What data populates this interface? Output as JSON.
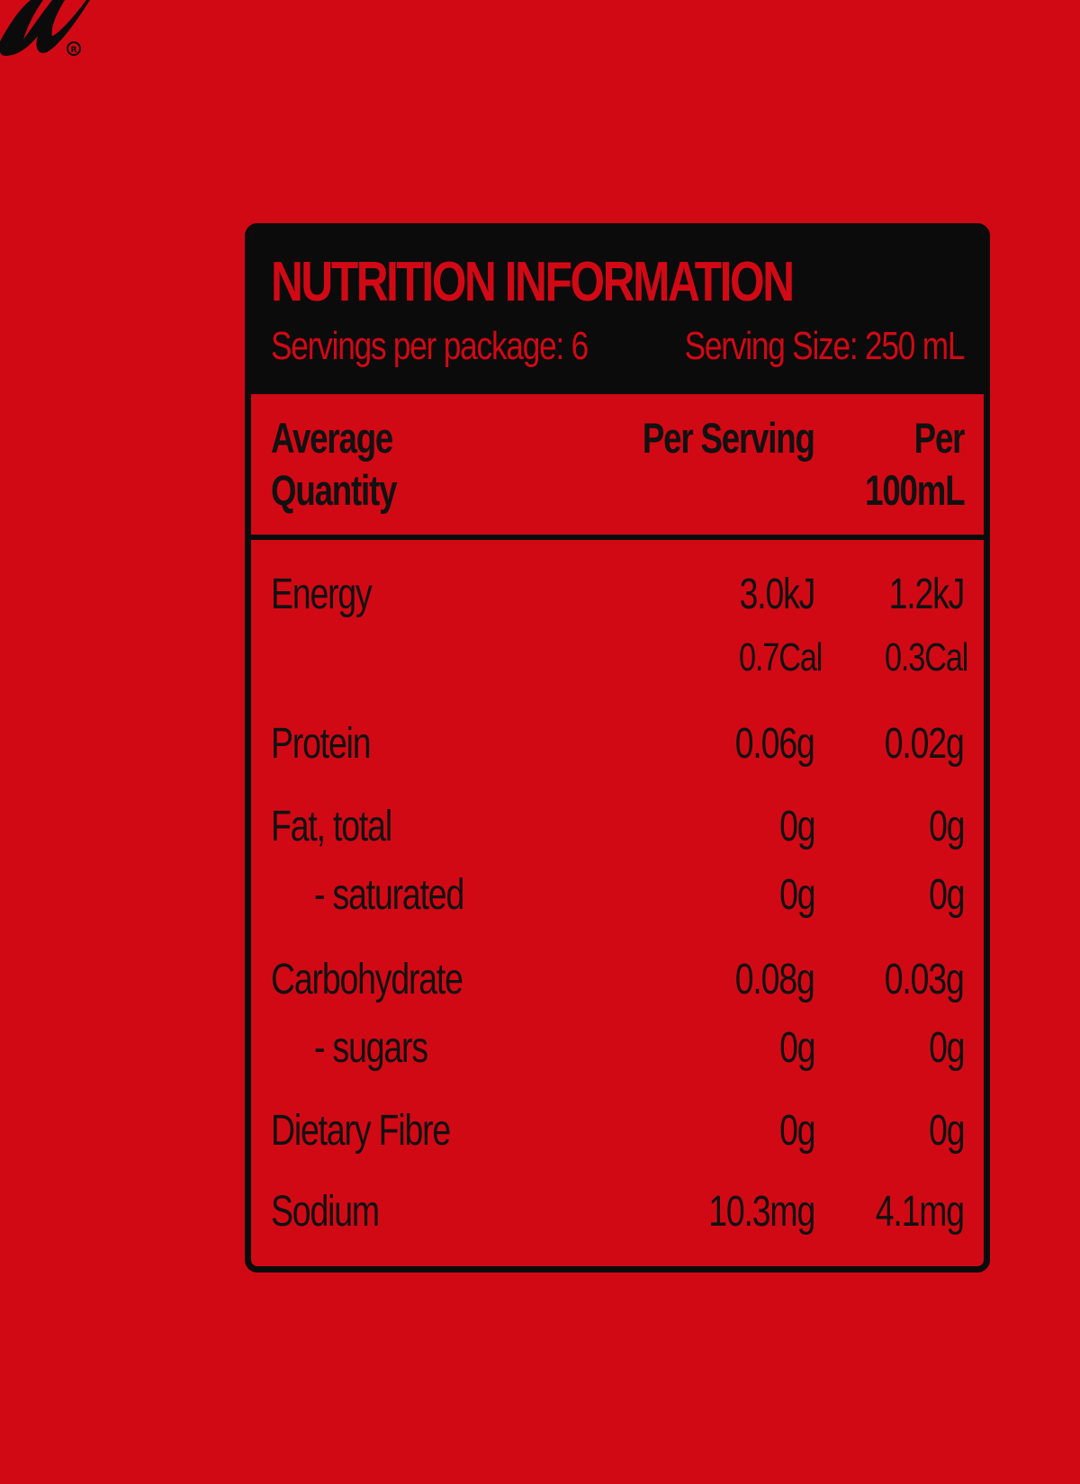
{
  "colors": {
    "background": "#d10915",
    "ink": "#0b0b0b"
  },
  "panel": {
    "title": "NUTRITION INFORMATION",
    "servings_per_package": "Servings per package: 6",
    "serving_size": "Serving Size: 250 mL"
  },
  "table": {
    "columns": {
      "quantity_line1": "Average",
      "quantity_line2": "Quantity",
      "per_serving": "Per Serving",
      "per_100_line1": "Per",
      "per_100_line2": "100mL"
    },
    "rows": [
      {
        "label": "Energy",
        "per_serving": "3.0kJ",
        "per_100": "1.2kJ"
      },
      {
        "label": "",
        "per_serving": "0.7Cal",
        "per_100": "0.3Cal"
      },
      {
        "label": "Protein",
        "per_serving": "0.06g",
        "per_100": "0.02g"
      },
      {
        "label": "Fat, total",
        "per_serving": "0g",
        "per_100": "0g"
      },
      {
        "label": "- saturated",
        "per_serving": "0g",
        "per_100": "0g"
      },
      {
        "label": "Carbohydrate",
        "per_serving": "0.08g",
        "per_100": "0.03g"
      },
      {
        "label": "- sugars",
        "per_serving": "0g",
        "per_100": "0g"
      },
      {
        "label": "Dietary Fibre",
        "per_serving": "0g",
        "per_100": "0g"
      },
      {
        "label": "Sodium",
        "per_serving": "10.3mg",
        "per_100": "4.1mg"
      }
    ]
  }
}
